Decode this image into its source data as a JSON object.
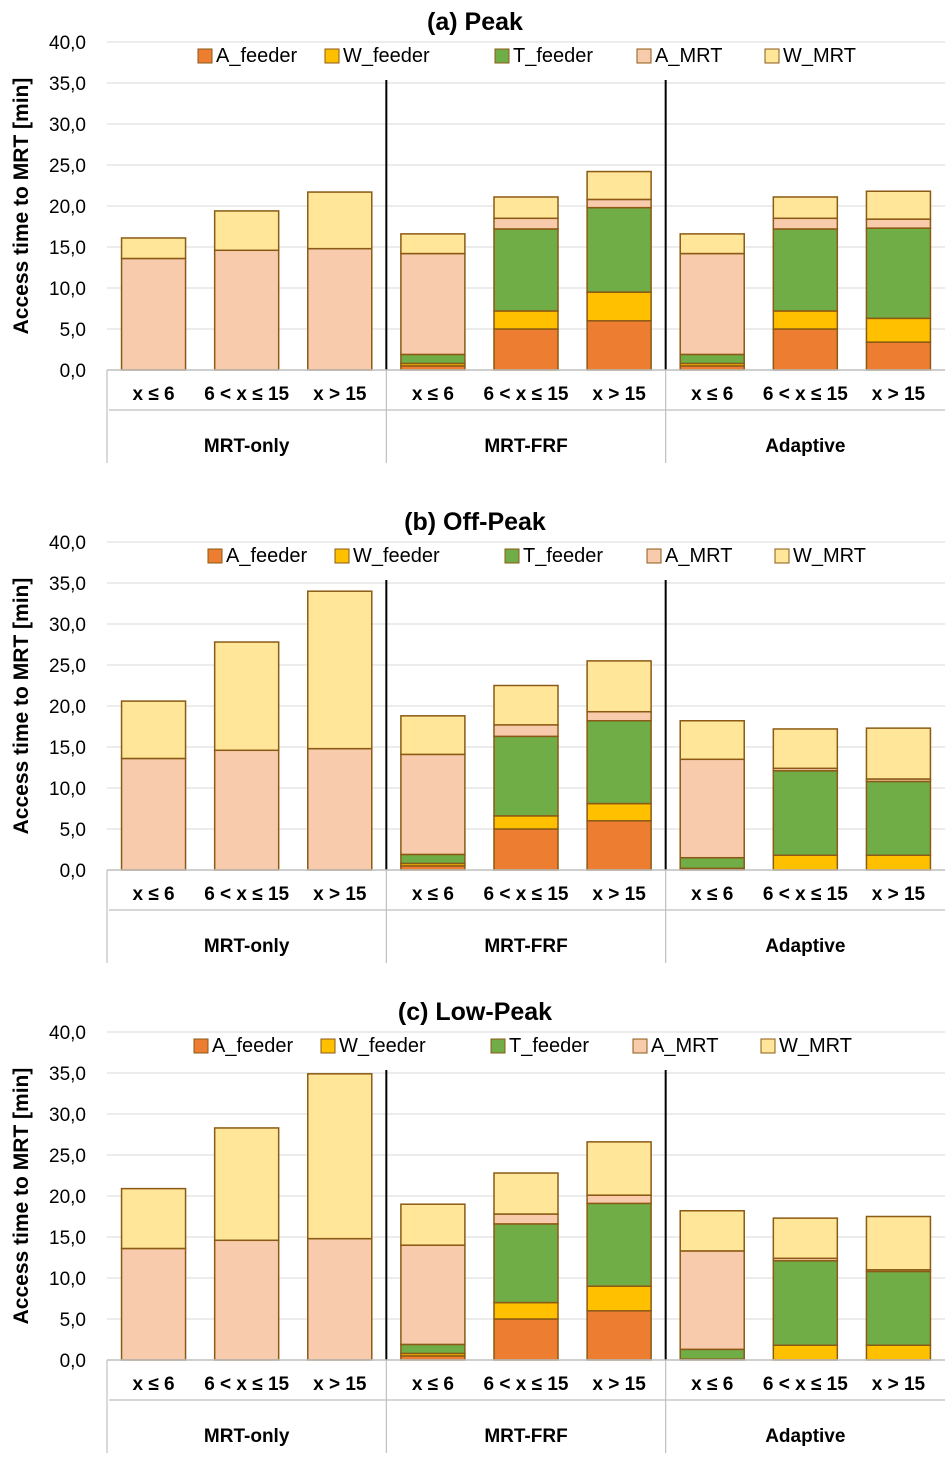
{
  "colors": {
    "A_feeder": "#ED7D31",
    "W_feeder": "#FFC000",
    "T_feeder": "#70AD47",
    "A_MRT": "#F8CBAD",
    "W_MRT": "#FFE699",
    "bar_stroke": "#8B5A14",
    "group_separator": "#000000",
    "axis_line": "#BFBFBF"
  },
  "chart_data": [
    {
      "type": "bar",
      "stacked": true,
      "title": "(a) Peak",
      "ylabel": "Access time to MRT [min]",
      "ylim": [
        0,
        40
      ],
      "yticks": [
        "0,0",
        "5,0",
        "10,0",
        "15,0",
        "20,0",
        "25,0",
        "30,0",
        "35,0",
        "40,0"
      ],
      "legend": [
        "A_feeder",
        "W_feeder",
        "T_feeder",
        "A_MRT",
        "W_MRT"
      ],
      "legend_position": "top",
      "groups": [
        "MRT-only",
        "MRT-FRF",
        "Adaptive"
      ],
      "categories": [
        "x ≤ 6",
        "6 < x ≤ 15",
        "x > 15",
        "x ≤ 6",
        "6 < x ≤ 15",
        "x > 15",
        "x ≤ 6",
        "6 < x ≤ 15",
        "x > 15"
      ],
      "series": [
        {
          "name": "A_feeder",
          "values": [
            0,
            0,
            0,
            0.5,
            5.0,
            6.0,
            0.5,
            5.0,
            3.4
          ]
        },
        {
          "name": "W_feeder",
          "values": [
            0,
            0,
            0,
            0.3,
            2.2,
            3.5,
            0.3,
            2.2,
            2.9
          ]
        },
        {
          "name": "T_feeder",
          "values": [
            0,
            0,
            0,
            1.1,
            10.0,
            10.3,
            1.1,
            10.0,
            11.0
          ]
        },
        {
          "name": "A_MRT",
          "values": [
            13.6,
            14.6,
            14.8,
            12.3,
            1.3,
            1.0,
            12.3,
            1.3,
            1.1
          ]
        },
        {
          "name": "W_MRT",
          "values": [
            2.5,
            4.8,
            6.9,
            2.4,
            2.6,
            3.4,
            2.4,
            2.6,
            3.4
          ]
        }
      ]
    },
    {
      "type": "bar",
      "stacked": true,
      "title": "(b) Off-Peak",
      "ylabel": "Access time to MRT [min]",
      "ylim": [
        0,
        40
      ],
      "yticks": [
        "0,0",
        "5,0",
        "10,0",
        "15,0",
        "20,0",
        "25,0",
        "30,0",
        "35,0",
        "40,0"
      ],
      "legend": [
        "A_feeder",
        "W_feeder",
        "T_feeder",
        "A_MRT",
        "W_MRT"
      ],
      "legend_position": "top",
      "groups": [
        "MRT-only",
        "MRT-FRF",
        "Adaptive"
      ],
      "categories": [
        "x ≤ 6",
        "6 < x ≤ 15",
        "x > 15",
        "x ≤ 6",
        "6 < x ≤ 15",
        "x > 15",
        "x ≤ 6",
        "6 < x ≤ 15",
        "x > 15"
      ],
      "series": [
        {
          "name": "A_feeder",
          "values": [
            0,
            0,
            0,
            0.5,
            5.0,
            6.0,
            0.2,
            0,
            0
          ]
        },
        {
          "name": "W_feeder",
          "values": [
            0,
            0,
            0,
            0.3,
            1.6,
            2.1,
            0,
            1.8,
            1.8
          ]
        },
        {
          "name": "T_feeder",
          "values": [
            0,
            0,
            0,
            1.1,
            9.7,
            10.1,
            1.3,
            10.3,
            9.0
          ]
        },
        {
          "name": "A_MRT",
          "values": [
            13.6,
            14.6,
            14.8,
            12.2,
            1.4,
            1.1,
            12.0,
            0.3,
            0.3
          ]
        },
        {
          "name": "W_MRT",
          "values": [
            7.0,
            13.2,
            19.2,
            4.7,
            4.8,
            6.2,
            4.7,
            4.8,
            6.2
          ]
        }
      ]
    },
    {
      "type": "bar",
      "stacked": true,
      "title": "(c) Low-Peak",
      "ylabel": "Access time to MRT [min]",
      "ylim": [
        0,
        40
      ],
      "yticks": [
        "0,0",
        "5,0",
        "10,0",
        "15,0",
        "20,0",
        "25,0",
        "30,0",
        "35,0",
        "40,0"
      ],
      "legend": [
        "A_feeder",
        "W_feeder",
        "T_feeder",
        "A_MRT",
        "W_MRT"
      ],
      "legend_position": "top",
      "groups": [
        "MRT-only",
        "MRT-FRF",
        "Adaptive"
      ],
      "categories": [
        "x ≤ 6",
        "6 < x ≤ 15",
        "x > 15",
        "x ≤ 6",
        "6 < x ≤ 15",
        "x > 15",
        "x ≤ 6",
        "6 < x ≤ 15",
        "x > 15"
      ],
      "series": [
        {
          "name": "A_feeder",
          "values": [
            0,
            0,
            0,
            0.5,
            5.0,
            6.0,
            0.1,
            0,
            0
          ]
        },
        {
          "name": "W_feeder",
          "values": [
            0,
            0,
            0,
            0.3,
            2.0,
            3.0,
            0,
            1.8,
            1.8
          ]
        },
        {
          "name": "T_feeder",
          "values": [
            0,
            0,
            0,
            1.1,
            9.6,
            10.1,
            1.2,
            10.3,
            9.0
          ]
        },
        {
          "name": "A_MRT",
          "values": [
            13.6,
            14.6,
            14.8,
            12.1,
            1.2,
            1.0,
            12.0,
            0.3,
            0.2
          ]
        },
        {
          "name": "W_MRT",
          "values": [
            7.3,
            13.7,
            20.1,
            5.0,
            5.0,
            6.5,
            4.9,
            4.9,
            6.5
          ]
        }
      ]
    }
  ]
}
